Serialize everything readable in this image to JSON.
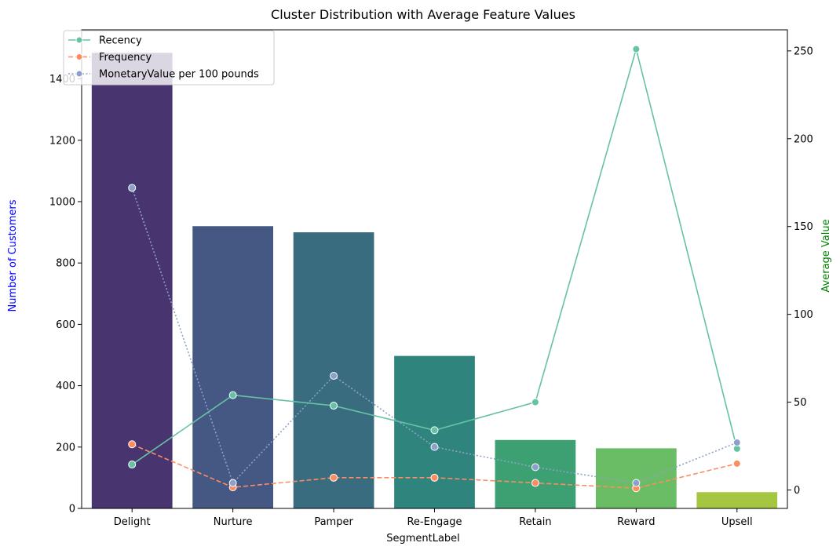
{
  "chart_data": {
    "type": "bar",
    "title": "Cluster Distribution with Average Feature Values",
    "xlabel": "SegmentLabel",
    "ylabel_left": "Number of Customers",
    "ylabel_right": "Average Value",
    "ylabel_left_color": "#0000ff",
    "ylabel_right_color": "#008000",
    "categories": [
      "Delight",
      "Nurture",
      "Pamper",
      "Re-Engage",
      "Retain",
      "Reward",
      "Upsell"
    ],
    "bars": {
      "values": [
        1485,
        920,
        900,
        497,
        223,
        196,
        53
      ],
      "colors": [
        "#48356f",
        "#445883",
        "#3a6c80",
        "#2f857d",
        "#3da073",
        "#6bbd65",
        "#a4c640"
      ]
    },
    "left_axis": {
      "ylim": [
        0,
        1560
      ],
      "ticks": [
        0,
        200,
        400,
        600,
        800,
        1000,
        1200,
        1400
      ]
    },
    "right_axis": {
      "ylim": [
        -10.5,
        262
      ],
      "ticks": [
        0,
        50,
        100,
        150,
        200,
        250
      ]
    },
    "series": [
      {
        "name": "Recency",
        "color": "#66c2a5",
        "dash": "solid",
        "values": [
          14.5,
          54,
          48,
          34,
          50,
          251,
          23.5
        ]
      },
      {
        "name": "Frequency",
        "color": "#fc8d62",
        "dash": "dashed",
        "values": [
          26,
          1.5,
          7,
          7,
          4,
          1,
          15
        ]
      },
      {
        "name": "MonetaryValue per 100 pounds",
        "color": "#8da0cb",
        "dash": "dotted",
        "values": [
          172,
          4,
          65,
          24.5,
          13,
          4,
          27
        ]
      }
    ],
    "legend": {
      "position": "top-left"
    },
    "grid": false
  }
}
